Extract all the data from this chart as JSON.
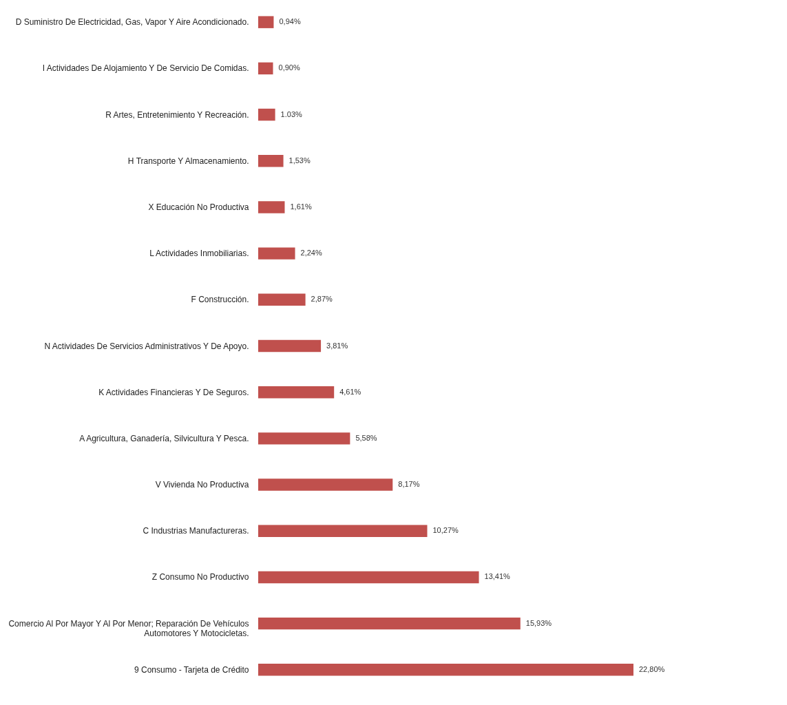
{
  "chart_data": {
    "type": "bar",
    "orientation": "horizontal",
    "color": "#c0504d",
    "categories": [
      "D Suministro De Electricidad, Gas, Vapor Y Aire Acondicionado.",
      "I Actividades De Alojamiento Y De Servicio De Comidas.",
      "R Artes, Entretenimiento Y Recreación.",
      "H Transporte Y Almacenamiento.",
      "X Educación No Productiva",
      "L Actividades Inmobiliarias.",
      "F Construcción.",
      "N Actividades De Servicios Administrativos Y De Apoyo.",
      "K Actividades Financieras Y De Seguros.",
      "A Agricultura, Ganadería,  Silvicultura Y Pesca.",
      "V Vivienda No Productiva",
      "C Industrias Manufactureras.",
      "Z Consumo No Productivo",
      "Comercio Al Por Mayor Y Al Por Menor; Reparación De Vehículos Automotores Y Motocicletas.",
      "9 Consumo - Tarjeta de Crédito"
    ],
    "values": [
      0.94,
      0.9,
      1.03,
      1.53,
      1.61,
      2.24,
      2.87,
      3.81,
      4.61,
      5.58,
      8.17,
      10.27,
      13.41,
      15.93,
      22.8
    ],
    "value_labels": [
      "0,94%",
      "0,90%",
      "1.03%",
      "1,53%",
      "1,61%",
      "2,24%",
      "2,87%",
      "3,81%",
      "4,61%",
      "5,58%",
      "8,17%",
      "10,27%",
      "13,41%",
      "15,93%",
      "22,80%"
    ]
  }
}
